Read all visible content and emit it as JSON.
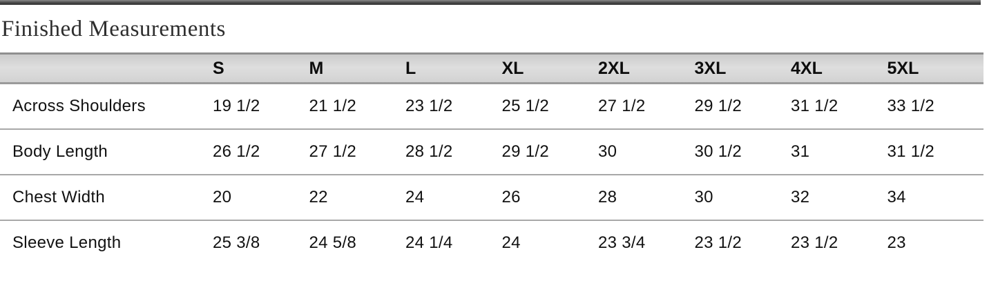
{
  "page": {
    "title": "Finished Measurements"
  },
  "colors": {
    "top_bar": "#4a4a4a",
    "header_background": "#d7d7d7",
    "row_divider": "#a8a8a8",
    "text": "#111111"
  },
  "chart_data": {
    "type": "table",
    "title": "Finished Measurements",
    "columns": [
      "",
      "S",
      "M",
      "L",
      "XL",
      "2XL",
      "3XL",
      "4XL",
      "5XL"
    ],
    "rows": [
      {
        "label": "Across Shoulders",
        "values": [
          "19 1/2",
          "21 1/2",
          "23 1/2",
          "25 1/2",
          "27 1/2",
          "29 1/2",
          "31 1/2",
          "33 1/2"
        ]
      },
      {
        "label": "Body Length",
        "values": [
          "26 1/2",
          "27 1/2",
          "28 1/2",
          "29 1/2",
          "30",
          "30 1/2",
          "31",
          "31 1/2"
        ]
      },
      {
        "label": "Chest Width",
        "values": [
          "20",
          "22",
          "24",
          "26",
          "28",
          "30",
          "32",
          "34"
        ]
      },
      {
        "label": "Sleeve Length",
        "values": [
          "25 3/8",
          "24 5/8",
          "24 1/4",
          "24",
          "23 3/4",
          "23 1/2",
          "23 1/2",
          "23"
        ]
      }
    ]
  }
}
